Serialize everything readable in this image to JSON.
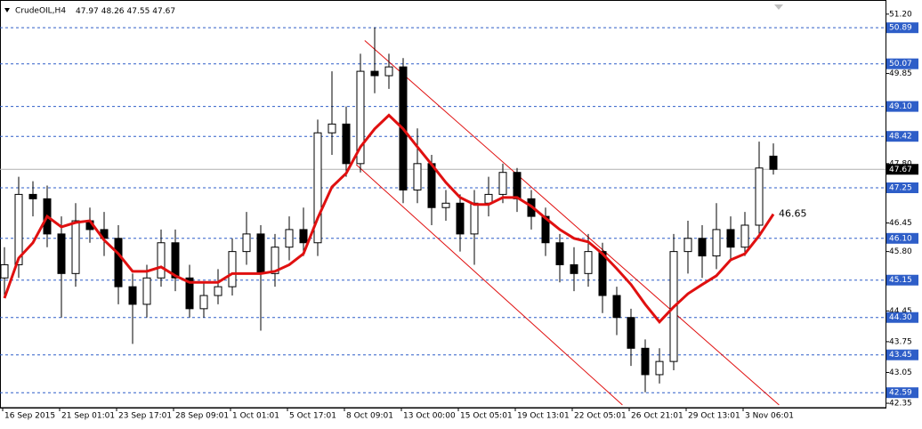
{
  "chart_data": {
    "type": "candlestick",
    "title": "CrudeOIL,H4",
    "categories": [
      "16 Sep 2015",
      null,
      null,
      null,
      "21 Sep 01:01",
      null,
      null,
      null,
      "23 Sep 17:01",
      null,
      null,
      null,
      "28 Sep 09:01",
      null,
      null,
      null,
      "1 Oct 01:01",
      null,
      null,
      null,
      "5 Oct 17:01",
      null,
      null,
      null,
      "8 Oct 09:01",
      null,
      null,
      null,
      "13 Oct 00:00",
      null,
      null,
      null,
      "15 Oct 05:01",
      null,
      null,
      null,
      "19 Oct 13:01",
      null,
      null,
      null,
      "22 Oct 05:01",
      null,
      null,
      null,
      "26 Oct 21:01",
      null,
      null,
      null,
      "29 Oct 13:01",
      null,
      null,
      null,
      "3 Nov 06:01",
      null,
      null
    ],
    "open": [
      45.2,
      45.5,
      47.1,
      47.0,
      46.2,
      45.3,
      46.5,
      46.3,
      46.1,
      45.0,
      44.6,
      45.2,
      46.0,
      45.2,
      44.5,
      44.8,
      45.0,
      45.8,
      46.2,
      45.3,
      45.9,
      46.3,
      46.0,
      48.5,
      48.7,
      47.8,
      49.9,
      49.8,
      50.0,
      47.2,
      47.8,
      46.8,
      46.9,
      46.2,
      46.9,
      47.1,
      47.6,
      47.0,
      46.6,
      46.0,
      45.5,
      45.3,
      45.8,
      44.8,
      44.3,
      43.6,
      43.0,
      43.3,
      45.8,
      46.1,
      45.7,
      46.3,
      45.9,
      46.4,
      47.97
    ],
    "high": [
      45.9,
      47.5,
      47.4,
      47.3,
      46.6,
      46.9,
      46.8,
      46.7,
      46.4,
      45.3,
      45.5,
      46.3,
      46.3,
      45.5,
      45.1,
      45.4,
      46.1,
      46.7,
      46.4,
      46.2,
      46.6,
      46.8,
      48.8,
      49.9,
      49.1,
      50.3,
      50.9,
      50.3,
      50.2,
      48.6,
      48.0,
      47.2,
      47.1,
      47.2,
      47.5,
      47.8,
      47.7,
      47.2,
      46.8,
      46.2,
      45.9,
      46.2,
      46.0,
      45.0,
      44.5,
      43.8,
      43.6,
      46.2,
      46.5,
      46.4,
      46.9,
      46.6,
      46.7,
      48.3,
      48.26
    ],
    "low": [
      44.8,
      45.2,
      46.6,
      45.9,
      44.3,
      45.0,
      46.0,
      45.7,
      44.6,
      43.7,
      44.3,
      45.0,
      44.9,
      44.3,
      44.3,
      44.6,
      44.8,
      45.5,
      44.0,
      45.0,
      45.6,
      45.7,
      45.7,
      48.0,
      47.5,
      47.6,
      49.4,
      49.5,
      46.9,
      46.9,
      46.4,
      46.5,
      45.8,
      45.5,
      46.6,
      46.9,
      46.7,
      46.3,
      45.7,
      45.1,
      44.9,
      45.0,
      44.4,
      43.9,
      43.2,
      42.6,
      42.8,
      43.1,
      45.3,
      45.2,
      45.4,
      45.6,
      45.7,
      46.2,
      47.55
    ],
    "close": [
      45.5,
      47.1,
      47.0,
      46.2,
      45.3,
      46.5,
      46.3,
      46.1,
      45.0,
      44.6,
      45.2,
      46.0,
      45.2,
      44.5,
      44.8,
      45.0,
      45.8,
      46.2,
      45.3,
      45.9,
      46.3,
      46.0,
      48.5,
      48.7,
      47.8,
      49.9,
      49.8,
      50.0,
      47.2,
      47.8,
      46.8,
      46.9,
      46.2,
      46.9,
      47.1,
      47.6,
      47.0,
      46.6,
      46.0,
      45.5,
      45.3,
      45.8,
      44.8,
      44.3,
      43.6,
      43.0,
      43.3,
      45.8,
      46.1,
      45.7,
      46.3,
      45.9,
      46.4,
      47.7,
      47.67
    ],
    "ma": {
      "color": "#e01010",
      "values": [
        44.74,
        45.65,
        46.0,
        46.6,
        46.36,
        46.46,
        46.5,
        46.06,
        45.75,
        45.35,
        45.35,
        45.45,
        45.25,
        45.1,
        45.1,
        45.1,
        45.3,
        45.3,
        45.3,
        45.35,
        45.5,
        45.75,
        46.56,
        47.27,
        47.58,
        48.18,
        48.59,
        48.9,
        48.59,
        48.18,
        47.78,
        47.37,
        47.03,
        46.87,
        46.87,
        47.03,
        47.03,
        46.83,
        46.56,
        46.3,
        46.1,
        46.02,
        45.75,
        45.41,
        45.05,
        44.6,
        44.2,
        44.54,
        44.84,
        45.05,
        45.25,
        45.61,
        45.75,
        46.16,
        46.65
      ]
    },
    "channel": {
      "color": "#e01010",
      "lines": [
        {
          "x": [
            25.3,
            54.4
          ],
          "y": [
            50.6,
            42.31
          ]
        },
        {
          "x": [
            24.7,
            43.4
          ],
          "y": [
            47.78,
            42.31
          ]
        }
      ]
    },
    "levels": [
      50.89,
      50.07,
      {
        "value": 49.1,
        "label": "49.10"
      },
      48.42,
      47.25,
      {
        "value": 46.1,
        "label": "46.10"
      },
      45.15,
      {
        "value": 44.3,
        "label": "44.30"
      },
      43.45,
      42.59
    ],
    "level_color": "#2e5ec8",
    "ylim": [
      42.25,
      51.42
    ],
    "yticks": [
      {
        "value": 51.2,
        "label": "51.20"
      },
      49.85,
      {
        "value": 47.8,
        "label": "47.80"
      },
      46.45,
      {
        "value": 45.8,
        "label": "45.80"
      },
      44.45,
      43.75,
      43.05,
      42.35
    ]
  }
}
